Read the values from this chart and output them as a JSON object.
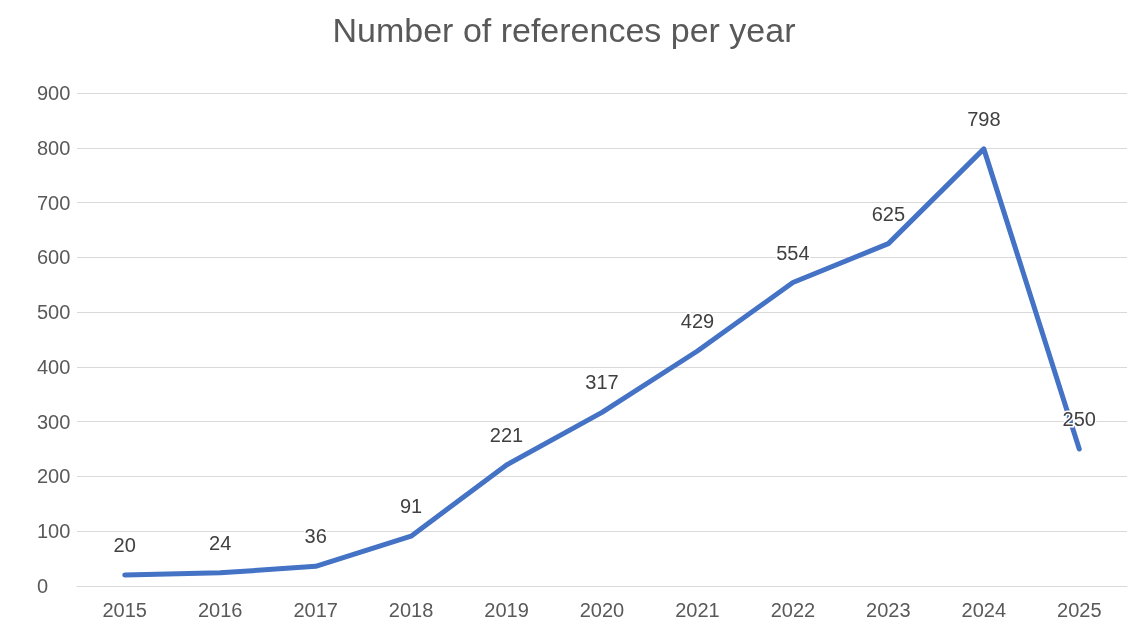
{
  "chart_data": {
    "type": "line",
    "title": "Number of references per year",
    "categories": [
      "2015",
      "2016",
      "2017",
      "2018",
      "2019",
      "2020",
      "2021",
      "2022",
      "2023",
      "2024",
      "2025"
    ],
    "series": [
      {
        "color": "#4472c4",
        "values": [
          20,
          24,
          36,
          91,
          221,
          317,
          429,
          554,
          625,
          798,
          250
        ]
      }
    ],
    "ylim": [
      0,
      900
    ],
    "yticks": [
      0,
      100,
      200,
      300,
      400,
      500,
      600,
      700,
      800,
      900
    ],
    "grid": "y",
    "marker": "none",
    "line_style": "solid",
    "data_labels": true
  }
}
